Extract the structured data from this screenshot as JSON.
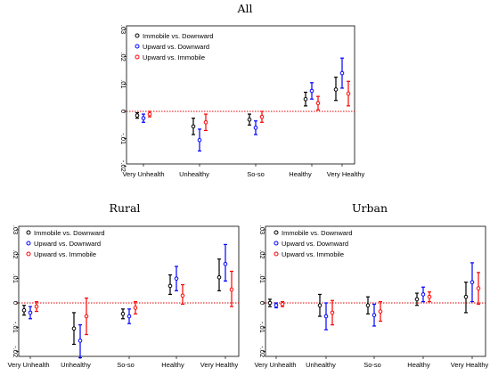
{
  "chart_data": [
    {
      "type": "scatter",
      "title": "All",
      "categories": [
        "Very Unhealth",
        "Unhealthy",
        "So-so",
        "Healthy",
        "Very Healthy"
      ],
      "y_ticks": [
        ".03",
        ".02",
        ".01",
        "0",
        "-.01",
        "-.02"
      ],
      "ylim": [
        -0.02,
        0.03
      ],
      "reference_line": 0,
      "legend_position": "top-left",
      "series": [
        {
          "name": "Immobile vs. Downward",
          "color": "#000000",
          "values": [
            -0.0015,
            -0.0055,
            -0.003,
            0.0045,
            0.008
          ],
          "ci_low": [
            -0.0025,
            -0.0085,
            -0.005,
            0.002,
            0.004
          ],
          "ci_high": [
            -0.0005,
            -0.0025,
            -0.001,
            0.007,
            0.0125
          ]
        },
        {
          "name": "Upward vs. Downward",
          "color": "#0000ff",
          "values": [
            -0.0025,
            -0.0105,
            -0.006,
            0.0075,
            0.014
          ],
          "ci_low": [
            -0.004,
            -0.0145,
            -0.0085,
            0.0045,
            0.0085
          ],
          "ci_high": [
            -0.001,
            -0.0065,
            -0.0035,
            0.0105,
            0.0195
          ]
        },
        {
          "name": "Upward vs. Immobile",
          "color": "#ff0000",
          "values": [
            -0.001,
            -0.004,
            -0.002,
            0.003,
            0.0065
          ],
          "ci_low": [
            -0.002,
            -0.007,
            -0.004,
            0.0005,
            0.002
          ],
          "ci_high": [
            0.0,
            -0.001,
            0.0,
            0.0055,
            0.011
          ]
        }
      ]
    },
    {
      "type": "scatter",
      "title": "Rural",
      "categories": [
        "Very Unhealth",
        "Unhealthy",
        "So-so",
        "Healthy",
        "Very Healthy"
      ],
      "y_ticks": [
        ".03",
        ".02",
        ".01",
        "0",
        "-.01",
        "-.02"
      ],
      "ylim": [
        -0.02,
        0.03
      ],
      "reference_line": 0,
      "legend_position": "top-left",
      "series": [
        {
          "name": "Immobile vs. Downward",
          "color": "#000000",
          "values": [
            -0.003,
            -0.0105,
            -0.0045,
            0.007,
            0.0105
          ],
          "ci_low": [
            -0.005,
            -0.017,
            -0.0065,
            0.0035,
            0.005
          ],
          "ci_high": [
            -0.001,
            -0.004,
            -0.0025,
            0.0115,
            0.018
          ]
        },
        {
          "name": "Upward vs. Downward",
          "color": "#0000ff",
          "values": [
            -0.004,
            -0.0155,
            -0.0055,
            0.01,
            0.016
          ],
          "ci_low": [
            -0.0065,
            -0.0225,
            -0.0085,
            0.005,
            0.009
          ],
          "ci_high": [
            -0.0015,
            -0.009,
            -0.0025,
            0.015,
            0.024
          ]
        },
        {
          "name": "Upward vs. Immobile",
          "color": "#ff0000",
          "values": [
            -0.0015,
            -0.0055,
            -0.002,
            0.003,
            0.0055
          ],
          "ci_low": [
            -0.0035,
            -0.013,
            -0.0045,
            -0.0005,
            -0.0015
          ],
          "ci_high": [
            0.0005,
            0.002,
            0.0005,
            0.0075,
            0.013
          ]
        }
      ]
    },
    {
      "type": "scatter",
      "title": "Urban",
      "categories": [
        "Very Unhealth",
        "Unhealthy",
        "So-so",
        "Healthy",
        "Very Healthy"
      ],
      "y_ticks": [
        ".03",
        ".02",
        ".01",
        "0",
        "-.01",
        "-.02"
      ],
      "ylim": [
        -0.02,
        0.03
      ],
      "reference_line": 0,
      "legend_position": "top-left",
      "series": [
        {
          "name": "Immobile vs. Downward",
          "color": "#000000",
          "values": [
            0.0,
            -0.001,
            -0.001,
            0.0015,
            0.0025
          ],
          "ci_low": [
            -0.0015,
            -0.0055,
            -0.0045,
            -0.001,
            -0.004
          ],
          "ci_high": [
            0.0015,
            0.0035,
            0.0025,
            0.004,
            0.0085
          ]
        },
        {
          "name": "Upward vs. Downward",
          "color": "#0000ff",
          "values": [
            -0.001,
            -0.0055,
            -0.005,
            0.0035,
            0.0085
          ],
          "ci_low": [
            -0.002,
            -0.011,
            -0.0095,
            0.0005,
            0.0005
          ],
          "ci_high": [
            0.0,
            0.0,
            -0.0005,
            0.0065,
            0.0165
          ]
        },
        {
          "name": "Upward vs. Immobile",
          "color": "#ff0000",
          "values": [
            -0.0005,
            -0.004,
            -0.0035,
            0.0025,
            0.006
          ],
          "ci_low": [
            -0.0015,
            -0.009,
            -0.0075,
            0.0005,
            -0.0005
          ],
          "ci_high": [
            0.0005,
            0.001,
            0.0005,
            0.0045,
            0.0125
          ]
        }
      ]
    }
  ]
}
